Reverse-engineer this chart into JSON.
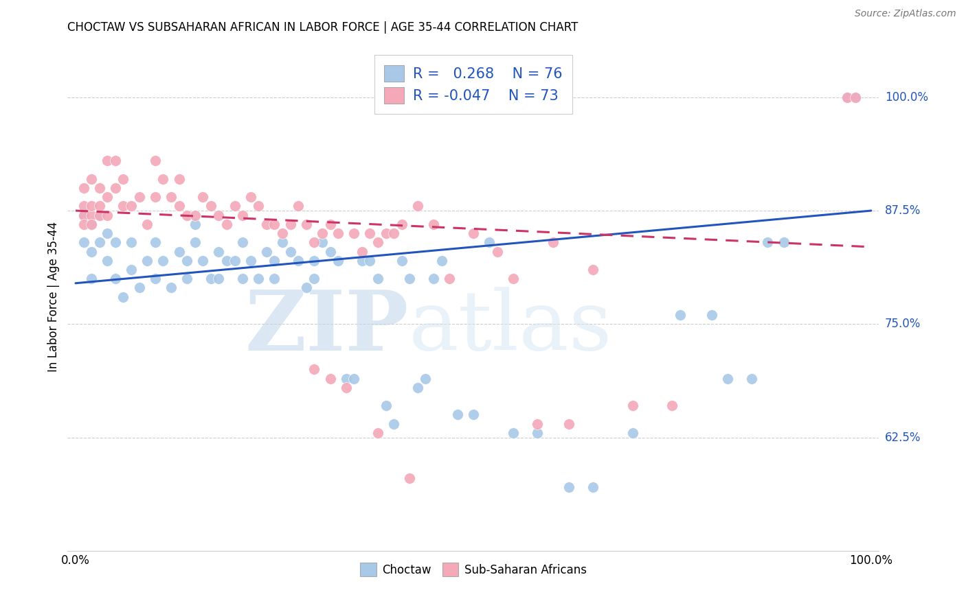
{
  "title": "CHOCTAW VS SUBSAHARAN AFRICAN IN LABOR FORCE | AGE 35-44 CORRELATION CHART",
  "source": "Source: ZipAtlas.com",
  "ylabel": "In Labor Force | Age 35-44",
  "ytick_labels": [
    "62.5%",
    "75.0%",
    "87.5%",
    "100.0%"
  ],
  "ytick_values": [
    0.625,
    0.75,
    0.875,
    1.0
  ],
  "xlim": [
    -0.01,
    1.01
  ],
  "ylim": [
    0.5,
    1.06
  ],
  "legend_blue_r": "0.268",
  "legend_blue_n": "76",
  "legend_pink_r": "-0.047",
  "legend_pink_n": "73",
  "blue_scatter_color": "#a8c8e8",
  "pink_scatter_color": "#f4a8b8",
  "line_blue_color": "#2255bb",
  "line_pink_color": "#cc3366",
  "watermark_color": "#dce8f4",
  "blue_line_x0": 0.0,
  "blue_line_x1": 1.0,
  "blue_line_y0": 0.795,
  "blue_line_y1": 0.875,
  "pink_line_x0": 0.0,
  "pink_line_x1": 1.0,
  "pink_line_y0": 0.875,
  "pink_line_y1": 0.835,
  "blue_scatter_x": [
    0.01,
    0.01,
    0.02,
    0.02,
    0.02,
    0.03,
    0.03,
    0.04,
    0.04,
    0.05,
    0.05,
    0.06,
    0.07,
    0.07,
    0.08,
    0.09,
    0.1,
    0.1,
    0.11,
    0.12,
    0.13,
    0.14,
    0.14,
    0.15,
    0.15,
    0.16,
    0.17,
    0.18,
    0.18,
    0.19,
    0.2,
    0.21,
    0.21,
    0.22,
    0.23,
    0.24,
    0.25,
    0.25,
    0.26,
    0.27,
    0.28,
    0.29,
    0.3,
    0.3,
    0.31,
    0.32,
    0.33,
    0.34,
    0.35,
    0.36,
    0.37,
    0.38,
    0.39,
    0.4,
    0.41,
    0.42,
    0.43,
    0.44,
    0.45,
    0.46,
    0.48,
    0.5,
    0.52,
    0.55,
    0.58,
    0.62,
    0.65,
    0.7,
    0.76,
    0.8,
    0.82,
    0.85,
    0.87,
    0.89,
    0.97,
    0.98
  ],
  "blue_scatter_y": [
    0.87,
    0.84,
    0.86,
    0.83,
    0.8,
    0.84,
    0.87,
    0.82,
    0.85,
    0.84,
    0.8,
    0.78,
    0.84,
    0.81,
    0.79,
    0.82,
    0.8,
    0.84,
    0.82,
    0.79,
    0.83,
    0.82,
    0.8,
    0.86,
    0.84,
    0.82,
    0.8,
    0.83,
    0.8,
    0.82,
    0.82,
    0.8,
    0.84,
    0.82,
    0.8,
    0.83,
    0.82,
    0.8,
    0.84,
    0.83,
    0.82,
    0.79,
    0.82,
    0.8,
    0.84,
    0.83,
    0.82,
    0.69,
    0.69,
    0.82,
    0.82,
    0.8,
    0.66,
    0.64,
    0.82,
    0.8,
    0.68,
    0.69,
    0.8,
    0.82,
    0.65,
    0.65,
    0.84,
    0.63,
    0.63,
    0.57,
    0.57,
    0.63,
    0.76,
    0.76,
    0.69,
    0.69,
    0.84,
    0.84,
    1.0,
    1.0
  ],
  "pink_scatter_x": [
    0.01,
    0.01,
    0.01,
    0.01,
    0.02,
    0.02,
    0.02,
    0.02,
    0.03,
    0.03,
    0.03,
    0.04,
    0.04,
    0.04,
    0.05,
    0.05,
    0.06,
    0.06,
    0.07,
    0.08,
    0.09,
    0.1,
    0.1,
    0.11,
    0.12,
    0.13,
    0.13,
    0.14,
    0.15,
    0.16,
    0.17,
    0.18,
    0.19,
    0.2,
    0.21,
    0.22,
    0.23,
    0.24,
    0.25,
    0.26,
    0.27,
    0.28,
    0.29,
    0.3,
    0.31,
    0.32,
    0.33,
    0.35,
    0.36,
    0.37,
    0.38,
    0.39,
    0.4,
    0.41,
    0.43,
    0.45,
    0.47,
    0.5,
    0.53,
    0.55,
    0.58,
    0.6,
    0.62,
    0.65,
    0.7,
    0.75,
    0.97,
    0.98,
    0.3,
    0.32,
    0.34,
    0.38,
    0.42
  ],
  "pink_scatter_y": [
    0.87,
    0.88,
    0.86,
    0.9,
    0.87,
    0.88,
    0.86,
    0.91,
    0.87,
    0.88,
    0.9,
    0.87,
    0.89,
    0.93,
    0.9,
    0.93,
    0.88,
    0.91,
    0.88,
    0.89,
    0.86,
    0.89,
    0.93,
    0.91,
    0.89,
    0.88,
    0.91,
    0.87,
    0.87,
    0.89,
    0.88,
    0.87,
    0.86,
    0.88,
    0.87,
    0.89,
    0.88,
    0.86,
    0.86,
    0.85,
    0.86,
    0.88,
    0.86,
    0.84,
    0.85,
    0.86,
    0.85,
    0.85,
    0.83,
    0.85,
    0.84,
    0.85,
    0.85,
    0.86,
    0.88,
    0.86,
    0.8,
    0.85,
    0.83,
    0.8,
    0.64,
    0.84,
    0.64,
    0.81,
    0.66,
    0.66,
    1.0,
    1.0,
    0.7,
    0.69,
    0.68,
    0.63,
    0.58
  ]
}
